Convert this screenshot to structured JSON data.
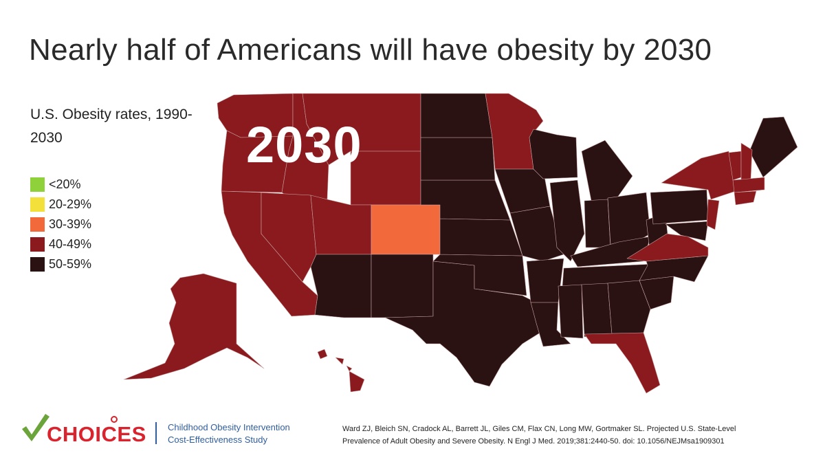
{
  "header": {
    "title": "Nearly half of Americans will have obesity by 2030"
  },
  "map": {
    "subtitle": "U.S. Obesity rates, 1990-2030",
    "year": "2030",
    "colors": {
      "lt20": "#8fd13b",
      "r20_29": "#f3e03b",
      "r30_39": "#f26a3c",
      "r40_49": "#8b1a1e",
      "r50_59": "#2a1112"
    }
  },
  "legend": {
    "items": [
      {
        "label": "<20%",
        "color": "#8fd13b"
      },
      {
        "label": "20-29%",
        "color": "#f3e03b"
      },
      {
        "label": "30-39%",
        "color": "#f26a3c"
      },
      {
        "label": "40-49%",
        "color": "#8b1a1e"
      },
      {
        "label": "50-59%",
        "color": "#2a1112"
      }
    ]
  },
  "footer": {
    "logo": "CHOICES",
    "org_line1": "Childhood Obesity Intervention",
    "org_line2": "Cost-Effectiveness Study",
    "citation_line1": "Ward ZJ, Bleich SN, Cradock AL, Barrett JL, Giles CM, Flax CN, Long MW, Gortmaker SL. Projected U.S. State-Level",
    "citation_line2": "Prevalence of Adult Obesity and Severe Obesity. N Engl J Med. 2019;381:2440-50. doi: 10.1056/NEJMsa1909301"
  }
}
